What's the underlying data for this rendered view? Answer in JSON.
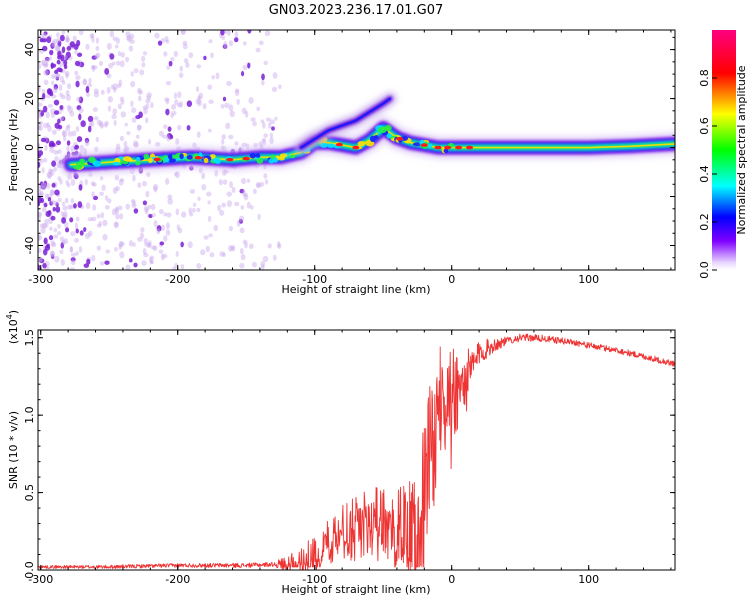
{
  "title": "GN03.2023.236.17.01.G07",
  "chart_data": [
    {
      "type": "heatmap",
      "xlabel": "Height of straight line (km)",
      "ylabel": "Frequency (Hz)",
      "xlim": [
        -302,
        163
      ],
      "ylim": [
        -50,
        48
      ],
      "xticks": [
        -300,
        -200,
        -100,
        0,
        100
      ],
      "yticks": [
        -40,
        -20,
        0,
        20,
        40
      ],
      "colorbar": {
        "label": "Normalized spectral amplitude",
        "range": [
          0,
          1
        ],
        "ticks": [
          0.0,
          0.2,
          0.4,
          0.6,
          0.8
        ],
        "colors": [
          "#ffffff",
          "#8000ff",
          "#0000ff",
          "#00ffff",
          "#00ff00",
          "#ffff00",
          "#ff0000",
          "#ff00aa"
        ]
      },
      "ridge": {
        "x": [
          -278,
          -250,
          -220,
          -190,
          -160,
          -140,
          -125,
          -110,
          -100,
          -90,
          -80,
          -70,
          -60,
          -50,
          -45,
          -40,
          -30,
          -20,
          -10,
          0,
          20,
          50,
          80,
          100,
          130,
          163
        ],
        "y": [
          -7,
          -6,
          -5,
          -4,
          -5,
          -4,
          -4,
          -2,
          2,
          2,
          1,
          0,
          3,
          8,
          6,
          4,
          2,
          1,
          0,
          0,
          0,
          0,
          0,
          0,
          0.5,
          1.5
        ]
      },
      "branch": {
        "x": [
          -110,
          -90,
          -70,
          -50,
          -45
        ],
        "y": [
          0,
          7,
          11,
          18,
          20
        ]
      },
      "scatter_extent_x": [
        -302,
        -125
      ]
    },
    {
      "type": "line",
      "xlabel": "Height of straight line (km)",
      "ylabel": "SNR (10 * v/v)",
      "yscale_note": "(x10",
      "yscale_exp": "4",
      "yscale_close": ")",
      "xlim": [
        -302,
        163
      ],
      "ylim": [
        0.0,
        1.55
      ],
      "xticks": [
        -300,
        -200,
        -100,
        0,
        100
      ],
      "yticks": [
        0.0,
        0.5,
        1.0,
        1.5
      ],
      "color": "#ee3333",
      "envelope": {
        "x": [
          -302,
          -250,
          -200,
          -150,
          -120,
          -110,
          -100,
          -90,
          -80,
          -70,
          -60,
          -50,
          -40,
          -30,
          -25,
          -20,
          -15,
          -10,
          -5,
          0,
          10,
          20,
          30,
          40,
          50,
          60,
          70,
          80,
          90,
          100,
          120,
          140,
          163
        ],
        "y": [
          0.02,
          0.02,
          0.03,
          0.03,
          0.04,
          0.06,
          0.1,
          0.2,
          0.3,
          0.3,
          0.35,
          0.35,
          0.3,
          0.25,
          0.3,
          0.6,
          0.9,
          1.1,
          1.15,
          1.15,
          1.2,
          1.4,
          1.45,
          1.48,
          1.5,
          1.5,
          1.49,
          1.48,
          1.47,
          1.45,
          1.42,
          1.38,
          1.33
        ]
      },
      "noise": {
        "x": [
          -302,
          -130,
          -110,
          -40,
          -25,
          0,
          20,
          40,
          100,
          163
        ],
        "amp": [
          0.01,
          0.015,
          0.1,
          0.22,
          0.4,
          0.35,
          0.08,
          0.025,
          0.02,
          0.02
        ]
      }
    }
  ]
}
